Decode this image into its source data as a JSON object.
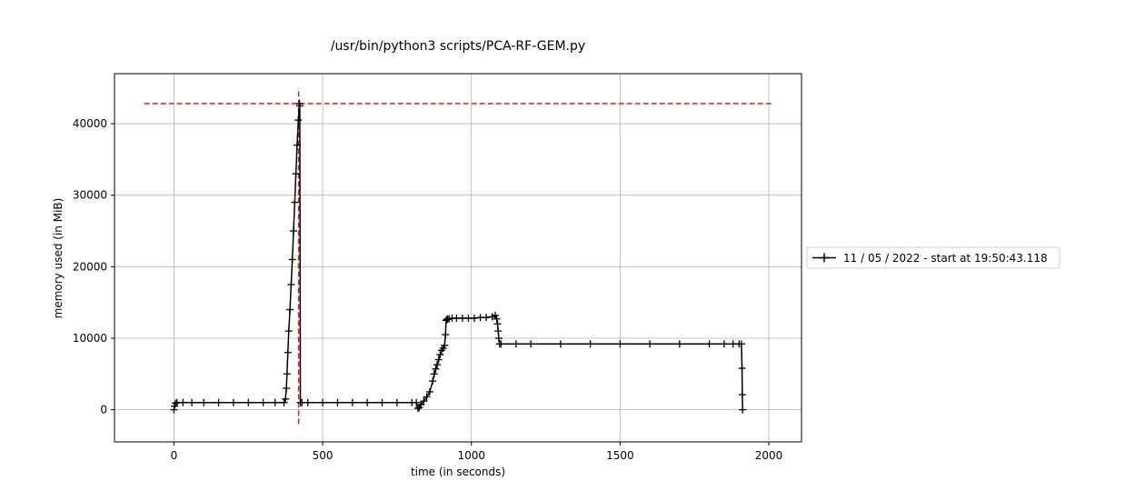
{
  "chart_data": {
    "type": "line",
    "title": "/usr/bin/python3 scripts/PCA-RF-GEM.py",
    "xlabel": "time (in seconds)",
    "ylabel": "memory used (in MiB)",
    "xlim": [
      -200,
      2110
    ],
    "ylim": [
      -4500,
      47000
    ],
    "xticks": [
      0,
      500,
      1000,
      1500,
      2000
    ],
    "yticks": [
      0,
      10000,
      20000,
      30000,
      40000
    ],
    "grid": true,
    "legend_placement": "outside-right",
    "series": [
      {
        "name": "11 / 05 / 2022 - start at 19:50:43.118",
        "color": "#000000",
        "marker": "+",
        "x": [
          0,
          2,
          5,
          10,
          30,
          60,
          100,
          150,
          200,
          250,
          300,
          340,
          370,
          375,
          378,
          380,
          383,
          386,
          390,
          394,
          398,
          402,
          406,
          410,
          414,
          418,
          422,
          423,
          425,
          430,
          450,
          500,
          550,
          600,
          650,
          700,
          750,
          800,
          815,
          820,
          825,
          830,
          840,
          850,
          860,
          870,
          875,
          880,
          885,
          890,
          895,
          900,
          905,
          910,
          913,
          915,
          918,
          920,
          925,
          935,
          950,
          970,
          990,
          1010,
          1030,
          1050,
          1070,
          1080,
          1085,
          1088,
          1090,
          1092,
          1095,
          1100,
          1150,
          1200,
          1300,
          1400,
          1500,
          1600,
          1700,
          1800,
          1850,
          1880,
          1900,
          1908,
          1910,
          1911,
          1912
        ],
        "y": [
          0,
          500,
          900,
          1000,
          1000,
          1000,
          1000,
          1000,
          1000,
          1000,
          1000,
          1000,
          1000,
          1500,
          3000,
          5000,
          8000,
          11000,
          14000,
          17500,
          21000,
          25000,
          29000,
          33000,
          37000,
          40500,
          42800,
          42500,
          1000,
          1000,
          1000,
          1000,
          1000,
          1000,
          1000,
          1000,
          1000,
          1000,
          1000,
          200,
          300,
          700,
          1200,
          1800,
          2500,
          4000,
          5000,
          5700,
          6300,
          7000,
          7700,
          8300,
          8600,
          9000,
          10500,
          12500,
          12600,
          12700,
          12700,
          12800,
          12800,
          12800,
          12800,
          12800,
          12900,
          12900,
          13000,
          13200,
          12700,
          12000,
          11000,
          10000,
          9200,
          9200,
          9200,
          9200,
          9200,
          9200,
          9200,
          9200,
          9200,
          9200,
          9200,
          9200,
          9200,
          9200,
          5800,
          2100,
          0
        ]
      }
    ],
    "peak_lines": {
      "color": "#e31a1c",
      "horizontal": {
        "y": 42800,
        "x_from": -100,
        "x_to": 2010
      },
      "vertical": {
        "x": 419,
        "y_from": -2000,
        "y_to": 45000
      }
    }
  }
}
